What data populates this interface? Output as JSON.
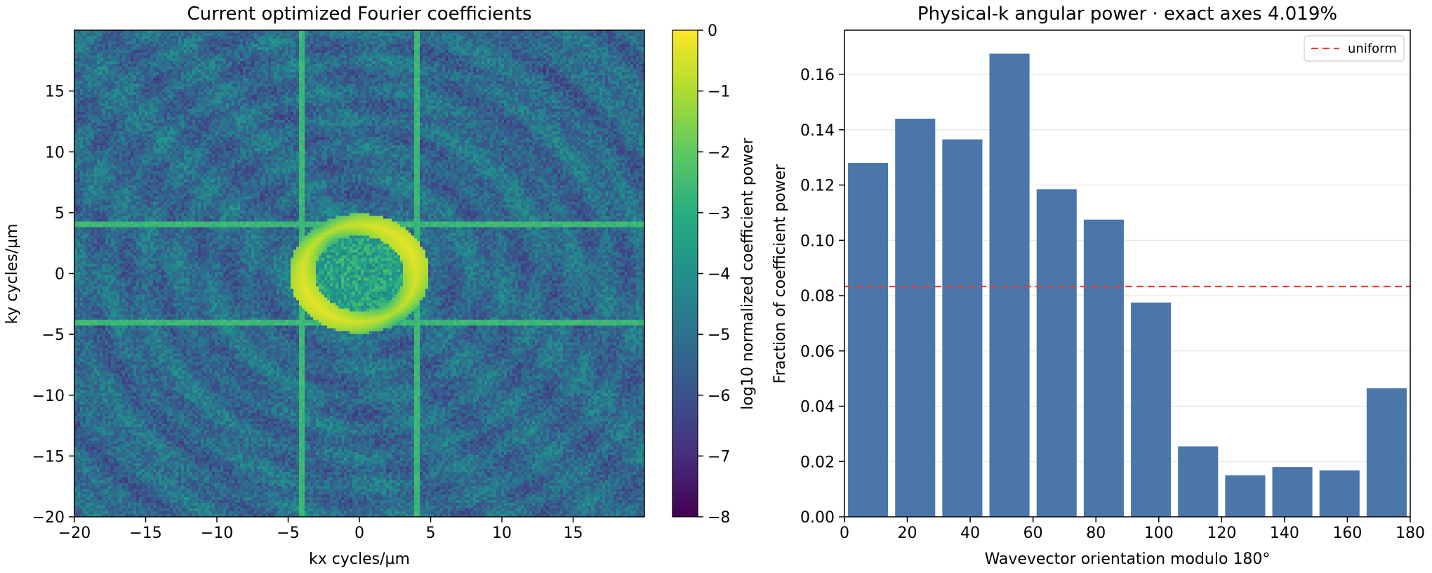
{
  "chart_data": [
    {
      "type": "heatmap",
      "title": "Current optimized Fourier coefficients",
      "xlabel": "kx cycles/µm",
      "ylabel": "ky cycles/µm",
      "xlim": [
        -20,
        20
      ],
      "ylim": [
        -20,
        20
      ],
      "x_ticks": [
        -20,
        -15,
        -10,
        -5,
        0,
        5,
        10,
        15
      ],
      "x_tick_labels": [
        "−20",
        "−15",
        "−10",
        "−5",
        "0",
        "5",
        "10",
        "15"
      ],
      "y_ticks": [
        -20,
        -15,
        -10,
        -5,
        0,
        5,
        10,
        15
      ],
      "y_tick_labels": [
        "−20",
        "−15",
        "−10",
        "−5",
        "0",
        "5",
        "10",
        "15"
      ],
      "colormap": "viridis",
      "colorbar": {
        "label": "log10 normalized coefficient power",
        "range": [
          -8,
          0
        ],
        "ticks": [
          0,
          -1,
          -2,
          -3,
          -4,
          -5,
          -6,
          -7,
          -8
        ],
        "tick_labels": [
          "0",
          "−1",
          "−2",
          "−3",
          "−4",
          "−5",
          "−6",
          "−7",
          "−8"
        ]
      },
      "features": {
        "ring_radius": 4,
        "axis_lines_kx": [
          -4,
          4
        ],
        "axis_lines_ky": [
          -4,
          4
        ],
        "ring_level": -0.3,
        "line_level": -2.6,
        "background_level": -5.2
      }
    },
    {
      "type": "bar",
      "title": "Physical-k angular power · exact axes 4.019%",
      "xlabel": "Wavevector orientation modulo 180°",
      "ylabel": "Fraction of coefficient power",
      "x": [
        7.5,
        22.5,
        37.5,
        52.5,
        67.5,
        82.5,
        97.5,
        112.5,
        127.5,
        142.5,
        157.5,
        172.5
      ],
      "bin_width": 15,
      "values": [
        0.128,
        0.144,
        0.1365,
        0.1675,
        0.1185,
        0.1075,
        0.0775,
        0.0255,
        0.015,
        0.018,
        0.0168,
        0.0465
      ],
      "xlim": [
        0,
        180
      ],
      "ylim": [
        0,
        0.176
      ],
      "x_ticks": [
        0,
        20,
        40,
        60,
        80,
        100,
        120,
        140,
        160,
        180
      ],
      "x_tick_labels": [
        "0",
        "20",
        "40",
        "60",
        "80",
        "100",
        "120",
        "140",
        "160",
        "180"
      ],
      "y_ticks": [
        0,
        0.02,
        0.04,
        0.06,
        0.08,
        0.1,
        0.12,
        0.14,
        0.16
      ],
      "y_tick_labels": [
        "0.00",
        "0.02",
        "0.04",
        "0.06",
        "0.08",
        "0.10",
        "0.12",
        "0.14",
        "0.16"
      ],
      "grid": "horizontal",
      "legend": {
        "position": "top-right",
        "entries": [
          "uniform"
        ]
      },
      "reference_line": {
        "name": "uniform",
        "value": 0.0833
      },
      "colors": {
        "bar": "#4a76aa",
        "reference": "#e8413c"
      }
    }
  ]
}
